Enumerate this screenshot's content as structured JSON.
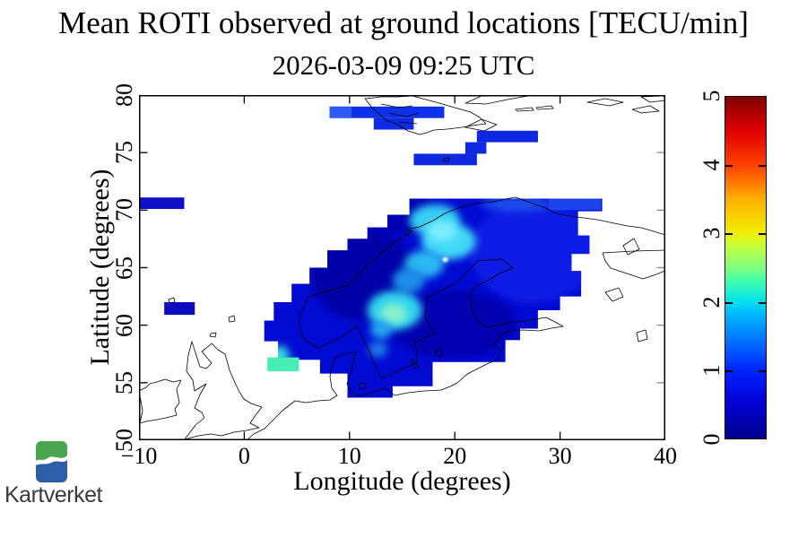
{
  "header": {
    "title": "Mean ROTI observed at ground locations [TECU/min]",
    "subtitle": "2026-03-09 09:25 UTC"
  },
  "axes": {
    "x": {
      "label": "Longitude (degrees)",
      "min": -10,
      "max": 40,
      "ticks": [
        {
          "v": -10,
          "t": "−10"
        },
        {
          "v": 0,
          "t": "0"
        },
        {
          "v": 10,
          "t": "10"
        },
        {
          "v": 20,
          "t": "20"
        },
        {
          "v": 30,
          "t": "30"
        },
        {
          "v": 40,
          "t": "40"
        }
      ]
    },
    "y": {
      "label": "Latitude (degrees)",
      "min": 50,
      "max": 80,
      "ticks": [
        {
          "v": 50,
          "t": "50"
        },
        {
          "v": 55,
          "t": "55"
        },
        {
          "v": 60,
          "t": "60"
        },
        {
          "v": 65,
          "t": "65"
        },
        {
          "v": 70,
          "t": "70"
        },
        {
          "v": 75,
          "t": "75"
        },
        {
          "v": 80,
          "t": "80"
        }
      ]
    }
  },
  "colorbar": {
    "min": 0,
    "max": 5,
    "units": "TECU/min",
    "ticks": [
      {
        "v": 0,
        "t": "0"
      },
      {
        "v": 1,
        "t": "1"
      },
      {
        "v": 2,
        "t": "2"
      },
      {
        "v": 3,
        "t": "3"
      },
      {
        "v": 4,
        "t": "4"
      },
      {
        "v": 5,
        "t": "5"
      }
    ],
    "stops": [
      [
        0,
        "#00008a"
      ],
      [
        10,
        "#0000d2"
      ],
      [
        20,
        "#0022ff"
      ],
      [
        30,
        "#0080ff"
      ],
      [
        36,
        "#00b4ff"
      ],
      [
        40,
        "#00e0f0"
      ],
      [
        46,
        "#40ffb0"
      ],
      [
        50,
        "#80ff80"
      ],
      [
        56,
        "#c0ff40"
      ],
      [
        60,
        "#f0f000"
      ],
      [
        70,
        "#ffb000"
      ],
      [
        80,
        "#ff4000"
      ],
      [
        90,
        "#e00000"
      ],
      [
        100,
        "#800000"
      ]
    ]
  },
  "chart_data": {
    "type": "heatmap",
    "title": "Mean ROTI observed at ground locations [TECU/min]",
    "timestamp": "2026-03-09 09:25 UTC",
    "xlabel": "Longitude (degrees)",
    "ylabel": "Latitude (degrees)",
    "xlim": [
      -10,
      40
    ],
    "ylim": [
      50,
      80
    ],
    "scale": {
      "min": 0,
      "max": 5,
      "units": "TECU/min",
      "colormap": "jet"
    },
    "base_region_color": "#000ad2",
    "base_region_value": 0.7,
    "main_region_outline_lonlat": [
      [
        15.7,
        71.0
      ],
      [
        34.0,
        71.0
      ],
      [
        34.0,
        69.9
      ],
      [
        31.7,
        69.9
      ],
      [
        31.7,
        67.8
      ],
      [
        32.8,
        67.8
      ],
      [
        32.8,
        66.2
      ],
      [
        31.1,
        66.2
      ],
      [
        31.1,
        64.7
      ],
      [
        32.0,
        64.7
      ],
      [
        32.0,
        62.5
      ],
      [
        30.0,
        62.5
      ],
      [
        30.0,
        61.3
      ],
      [
        27.9,
        61.3
      ],
      [
        27.9,
        59.7
      ],
      [
        26.2,
        59.7
      ],
      [
        26.2,
        58.7
      ],
      [
        24.8,
        58.7
      ],
      [
        24.8,
        56.8
      ],
      [
        17.9,
        56.8
      ],
      [
        17.9,
        54.7
      ],
      [
        14.1,
        54.7
      ],
      [
        14.1,
        53.7
      ],
      [
        9.8,
        53.7
      ],
      [
        9.8,
        55.8
      ],
      [
        7.2,
        55.8
      ],
      [
        7.2,
        57.0
      ],
      [
        5.2,
        57.0
      ],
      [
        3.2,
        56.9
      ],
      [
        3.2,
        58.6
      ],
      [
        1.9,
        58.6
      ],
      [
        1.9,
        60.4
      ],
      [
        2.8,
        60.4
      ],
      [
        2.8,
        62.0
      ],
      [
        4.5,
        62.0
      ],
      [
        4.5,
        63.6
      ],
      [
        6.2,
        63.6
      ],
      [
        6.2,
        65.0
      ],
      [
        7.9,
        65.0
      ],
      [
        7.9,
        66.5
      ],
      [
        9.8,
        66.5
      ],
      [
        9.8,
        67.5
      ],
      [
        11.7,
        67.5
      ],
      [
        11.7,
        68.5
      ],
      [
        13.6,
        68.5
      ],
      [
        13.6,
        69.6
      ],
      [
        15.7,
        69.6
      ]
    ],
    "cells": [
      {
        "lon": [
          8.1,
          19.0
        ],
        "lat": [
          78.0,
          79.0
        ],
        "value": 0.9,
        "color": "#0d31e9"
      },
      {
        "lon": [
          8.1,
          10.2
        ],
        "lat": [
          78.0,
          79.0
        ],
        "value": 1.1,
        "color": "#2e5bf2"
      },
      {
        "lon": [
          12.3,
          16.1
        ],
        "lat": [
          77.0,
          78.0
        ],
        "value": 0.85,
        "color": "#0d2be4"
      },
      {
        "lon": [
          22.1,
          27.9
        ],
        "lat": [
          75.9,
          76.9
        ],
        "value": 0.85,
        "color": "#0d28e0"
      },
      {
        "lon": [
          21.0,
          23.0
        ],
        "lat": [
          74.9,
          75.9
        ],
        "value": 0.85,
        "color": "#0d28e0"
      },
      {
        "lon": [
          16.1,
          22.1
        ],
        "lat": [
          73.9,
          74.9
        ],
        "value": 0.85,
        "color": "#0d28e0"
      },
      {
        "lon": [
          -10.0,
          -5.7
        ],
        "lat": [
          70.1,
          71.1
        ],
        "value": 0.75,
        "color": "#0f0fc8"
      },
      {
        "lon": [
          -7.6,
          -4.7
        ],
        "lat": [
          60.9,
          62.0
        ],
        "value": 0.65,
        "color": "#0a0ac0"
      },
      {
        "lon": [
          2.2,
          5.2
        ],
        "lat": [
          56.0,
          57.2
        ],
        "value": 2.3,
        "color": "#46eeb5"
      },
      {
        "lon": [
          28.9,
          33.9
        ],
        "lat": [
          70.0,
          71.0
        ],
        "value": 1.0,
        "color": "#1c42ee"
      }
    ],
    "bright_features": [
      {
        "lon": 27.5,
        "lat": 66.4,
        "rlon": 6.0,
        "rlat": 4.5,
        "value": 0.8,
        "color": "#0a1ce4"
      },
      {
        "lon": 11.3,
        "lat": 64.4,
        "rlon": 5.0,
        "rlat": 4.0,
        "value": 0.45,
        "color": "#0000a8"
      },
      {
        "lon": 19.8,
        "lat": 60.1,
        "rlon": 6.0,
        "rlat": 3.0,
        "value": 0.5,
        "color": "#0000b0"
      },
      {
        "lon": 14.7,
        "lat": 69.9,
        "rlon": 3.5,
        "rlat": 2.0,
        "value": 0.5,
        "color": "#0000b0"
      },
      {
        "lon": 25.8,
        "lat": 70.5,
        "rlon": 3.4,
        "rlat": 0.6,
        "value": 1.0,
        "color": "#1e50ee"
      },
      {
        "lon": 18.1,
        "lat": 69.1,
        "rlon": 2.4,
        "rlat": 1.4,
        "value": 1.5,
        "color": "#35cdf5"
      },
      {
        "lon": 19.4,
        "lat": 67.3,
        "rlon": 2.6,
        "rlat": 1.6,
        "value": 1.6,
        "color": "#3fd9f8"
      },
      {
        "lon": 17.1,
        "lat": 65.3,
        "rlon": 1.9,
        "rlat": 1.2,
        "value": 1.4,
        "color": "#2bb7f0"
      },
      {
        "lon": 15.6,
        "lat": 63.9,
        "rlon": 1.5,
        "rlat": 1.1,
        "value": 1.2,
        "color": "#1e8fe8"
      },
      {
        "lon": 18.8,
        "lat": 68.2,
        "rlon": 1.4,
        "rlat": 0.9,
        "value": 1.8,
        "color": "#7ceefc"
      },
      {
        "lon": 14.3,
        "lat": 61.3,
        "rlon": 2.6,
        "rlat": 1.7,
        "value": 1.6,
        "color": "#2fd2f0"
      },
      {
        "lon": 14.2,
        "lat": 61.0,
        "rlon": 1.3,
        "rlat": 0.9,
        "value": 2.1,
        "color": "#86f2cc"
      },
      {
        "lon": 13.0,
        "lat": 59.6,
        "rlon": 1.0,
        "rlat": 0.8,
        "value": 1.3,
        "color": "#21a8ee"
      },
      {
        "lon": 12.7,
        "lat": 57.9,
        "rlon": 0.9,
        "rlat": 0.7,
        "value": 1.1,
        "color": "#1a7ce8"
      },
      {
        "lon": 3.3,
        "lat": 57.4,
        "rlon": 1.0,
        "rlat": 0.8,
        "value": 1.7,
        "color": "#35d9e8"
      },
      {
        "lon": 19.1,
        "lat": 65.7,
        "rlon": 0.28,
        "rlat": 0.22,
        "value": 2.0,
        "color": "#e0fcff",
        "blur": "tiny"
      }
    ]
  },
  "logo": {
    "text": "Kartverket",
    "green": "#4aa64e",
    "blue": "#2b5ea7",
    "text_color": "#3a3a3a"
  }
}
